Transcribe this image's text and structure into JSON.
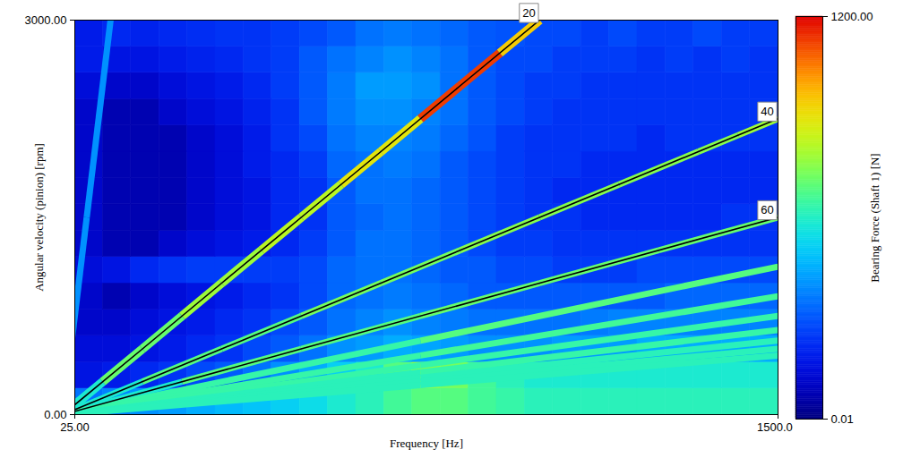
{
  "chart_data": {
    "type": "heatmap",
    "x_label": "Frequency [Hz]",
    "y_label": "Angular velocity (pinion) [rpm]",
    "xlim": [
      25,
      1500
    ],
    "ylim": [
      0,
      3000
    ],
    "xticks": [
      {
        "value": 25,
        "label": "25.00"
      },
      {
        "value": 1500,
        "label": "1500.00"
      }
    ],
    "yticks": [
      {
        "value": 0,
        "label": "0.00"
      },
      {
        "value": 3000,
        "label": "3000.00"
      }
    ],
    "colorbar": {
      "label": "Bearing Force (Shaft 1) [N]",
      "lim": [
        0.01,
        1200
      ],
      "ticks": [
        {
          "value": 0.01,
          "label": "0.01"
        },
        {
          "value": 1200,
          "label": "1200.00"
        }
      ],
      "log": true
    },
    "heatmap": {
      "x_bins": [
        25,
        84,
        143,
        202,
        261,
        320,
        379,
        438,
        497,
        556,
        615,
        674,
        733,
        792,
        851,
        910,
        969,
        1028,
        1087,
        1146,
        1205,
        1264,
        1323,
        1382,
        1441,
        1500
      ],
      "y_bins": [
        0,
        200,
        400,
        600,
        800,
        1000,
        1200,
        1400,
        1600,
        1800,
        2000,
        2200,
        2400,
        2600,
        2800,
        3000
      ],
      "cells": [
        [
          0.3,
          0.4,
          0.5,
          0.6,
          0.8,
          1,
          1.2,
          1.5,
          2,
          3,
          4,
          6,
          8,
          8,
          6,
          5,
          4,
          4,
          4,
          4,
          4,
          4,
          4,
          4,
          4
        ],
        [
          0.05,
          0.06,
          0.08,
          0.1,
          0.15,
          0.2,
          0.3,
          0.5,
          0.8,
          1.5,
          3,
          8,
          15,
          12,
          6,
          4,
          3,
          3,
          3,
          3,
          3,
          3,
          3,
          3,
          3
        ],
        [
          0.04,
          0.04,
          0.05,
          0.06,
          0.08,
          0.1,
          0.15,
          0.2,
          0.3,
          0.5,
          0.6,
          0.8,
          0.7,
          0.6,
          0.5,
          0.5,
          0.5,
          0.6,
          0.6,
          0.6,
          0.8,
          0.8,
          0.8,
          0.8,
          0.8
        ],
        [
          0.03,
          0.03,
          0.04,
          0.05,
          0.06,
          0.08,
          0.1,
          0.15,
          0.2,
          0.3,
          0.4,
          0.5,
          0.4,
          0.35,
          0.3,
          0.3,
          0.3,
          0.3,
          0.35,
          0.4,
          0.4,
          0.4,
          0.4,
          0.4,
          0.4
        ],
        [
          0.03,
          0.02,
          0.03,
          0.04,
          0.05,
          0.06,
          0.08,
          0.1,
          0.15,
          0.25,
          0.3,
          0.35,
          0.3,
          0.25,
          0.2,
          0.2,
          0.2,
          0.2,
          0.2,
          0.2,
          0.2,
          0.25,
          0.25,
          0.25,
          0.25
        ],
        [
          0.04,
          0.05,
          0.08,
          0.1,
          0.12,
          0.12,
          0.12,
          0.12,
          0.15,
          0.25,
          0.3,
          0.3,
          0.25,
          0.2,
          0.2,
          0.15,
          0.15,
          0.12,
          0.12,
          0.12,
          0.15,
          0.15,
          0.15,
          0.15,
          0.15
        ],
        [
          0.03,
          0.02,
          0.02,
          0.03,
          0.04,
          0.05,
          0.06,
          0.08,
          0.12,
          0.2,
          0.3,
          0.3,
          0.25,
          0.2,
          0.15,
          0.12,
          0.12,
          0.1,
          0.1,
          0.1,
          0.1,
          0.1,
          0.1,
          0.1,
          0.1
        ],
        [
          0.03,
          0.02,
          0.02,
          0.02,
          0.03,
          0.04,
          0.05,
          0.08,
          0.1,
          0.2,
          0.25,
          0.3,
          0.25,
          0.2,
          0.15,
          0.12,
          0.1,
          0.1,
          0.08,
          0.08,
          0.08,
          0.08,
          0.08,
          0.1,
          0.1
        ],
        [
          0.03,
          0.02,
          0.02,
          0.02,
          0.03,
          0.04,
          0.05,
          0.08,
          0.1,
          0.2,
          0.3,
          0.3,
          0.25,
          0.2,
          0.15,
          0.12,
          0.1,
          0.08,
          0.08,
          0.08,
          0.08,
          0.08,
          0.08,
          0.08,
          0.08
        ],
        [
          0.03,
          0.02,
          0.02,
          0.02,
          0.03,
          0.04,
          0.06,
          0.08,
          0.12,
          0.25,
          0.3,
          0.35,
          0.3,
          0.2,
          0.15,
          0.12,
          0.1,
          0.1,
          0.08,
          0.08,
          0.08,
          0.08,
          0.08,
          0.08,
          0.08
        ],
        [
          0.03,
          0.02,
          0.02,
          0.02,
          0.03,
          0.04,
          0.06,
          0.1,
          0.15,
          0.3,
          0.4,
          0.4,
          0.35,
          0.25,
          0.18,
          0.12,
          0.1,
          0.1,
          0.1,
          0.1,
          0.08,
          0.1,
          0.1,
          0.1,
          0.1
        ],
        [
          0.03,
          0.02,
          0.02,
          0.03,
          0.04,
          0.05,
          0.07,
          0.1,
          0.2,
          0.35,
          0.5,
          0.5,
          0.4,
          0.3,
          0.2,
          0.15,
          0.12,
          0.1,
          0.1,
          0.1,
          0.1,
          0.1,
          0.1,
          0.1,
          0.1
        ],
        [
          0.04,
          0.03,
          0.03,
          0.04,
          0.05,
          0.06,
          0.08,
          0.12,
          0.2,
          0.35,
          0.6,
          0.6,
          0.5,
          0.3,
          0.2,
          0.15,
          0.12,
          0.12,
          0.1,
          0.1,
          0.1,
          0.1,
          0.1,
          0.1,
          0.1
        ],
        [
          0.06,
          0.05,
          0.05,
          0.06,
          0.07,
          0.08,
          0.1,
          0.12,
          0.2,
          0.3,
          0.4,
          0.5,
          0.4,
          0.3,
          0.2,
          0.15,
          0.15,
          0.12,
          0.12,
          0.12,
          0.1,
          0.12,
          0.1,
          0.12,
          0.1
        ],
        [
          0.06,
          0.08,
          0.07,
          0.08,
          0.09,
          0.1,
          0.1,
          0.12,
          0.15,
          0.2,
          0.3,
          0.35,
          0.3,
          0.25,
          0.2,
          0.18,
          0.15,
          0.15,
          0.12,
          0.15,
          0.12,
          0.12,
          0.15,
          0.12,
          0.12
        ]
      ]
    },
    "series": [
      {
        "name": "20",
        "color": "#000000",
        "x": [
          0,
          167,
          333,
          500,
          667,
          833,
          1000
        ],
        "y": [
          0,
          500,
          1000,
          1500,
          2000,
          2500,
          3000
        ],
        "values": [
          3,
          10,
          20,
          30,
          60,
          600,
          100
        ]
      },
      {
        "name": "40",
        "color": "#000000",
        "x": [
          0,
          333,
          667,
          1000,
          1333,
          1500
        ],
        "y": [
          0,
          500,
          1000,
          1500,
          2000,
          2250
        ],
        "values": [
          3,
          8,
          12,
          15,
          15,
          20
        ]
      },
      {
        "name": "60",
        "color": "#000000",
        "x": [
          0,
          500,
          1000,
          1500
        ],
        "y": [
          0,
          500,
          1000,
          1500
        ],
        "values": [
          3,
          8,
          10,
          10
        ]
      },
      {
        "x": [
          0,
          1500
        ],
        "y": [
          0,
          1125
        ],
        "values": [
          5,
          8
        ]
      },
      {
        "x": [
          0,
          1500
        ],
        "y": [
          0,
          900
        ],
        "values": [
          5,
          6
        ]
      },
      {
        "x": [
          0,
          1500
        ],
        "y": [
          0,
          750
        ],
        "values": [
          5,
          5
        ]
      },
      {
        "x": [
          0,
          1500
        ],
        "y": [
          0,
          643
        ],
        "values": [
          4,
          5
        ]
      },
      {
        "x": [
          0,
          1500
        ],
        "y": [
          0,
          563
        ],
        "values": [
          4,
          4
        ]
      },
      {
        "x": [
          0,
          1500
        ],
        "y": [
          0,
          500
        ],
        "values": [
          4,
          4
        ]
      },
      {
        "x": [
          0,
          1500
        ],
        "y": [
          0,
          450
        ],
        "values": [
          4,
          4
        ]
      },
      {
        "x": [
          0,
          100
        ],
        "y": [
          0,
          3000
        ],
        "values": [
          0.5,
          0.5
        ]
      }
    ]
  }
}
